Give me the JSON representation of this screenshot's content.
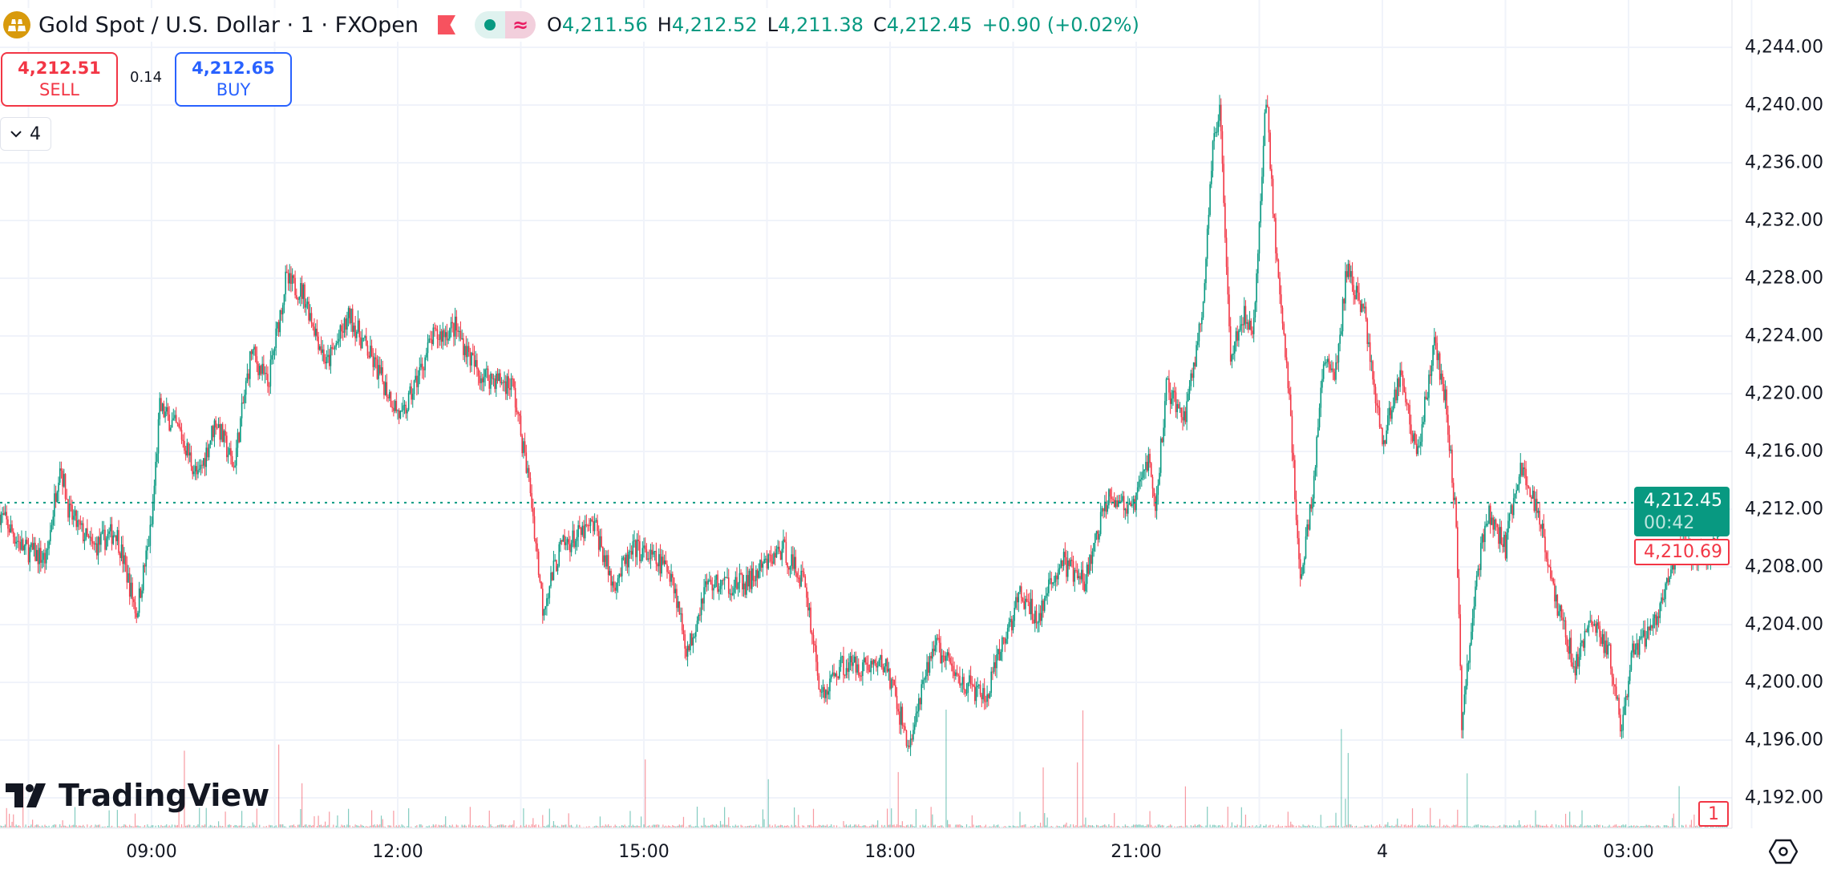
{
  "header": {
    "symbol_title": "Gold Spot / U.S. Dollar · 1 · FXOpen",
    "market_status_icon": "market-closed-flag-icon",
    "ohlc": {
      "open_label": "O",
      "open": "4,211.56",
      "high_label": "H",
      "high": "4,212.52",
      "low_label": "L",
      "low": "4,211.38",
      "close_label": "C",
      "close": "4,212.45",
      "change": "+0.90 (+0.02%)"
    }
  },
  "trade": {
    "sell_price": "4,212.51",
    "sell_label": "SELL",
    "spread": "0.14",
    "buy_price": "4,212.65",
    "buy_label": "BUY"
  },
  "legend_toggle": {
    "count": "4"
  },
  "price_axis": {
    "last_price": "4,212.45",
    "countdown": "00:42",
    "bid_price": "4,210.69",
    "pane_badge": "1"
  },
  "branding": {
    "logo_text": "TradingView"
  },
  "colors": {
    "up": "#089981",
    "down": "#f23645",
    "grid": "#f0f3fa",
    "accent": "#2962ff"
  },
  "chart_data": {
    "type": "candlestick",
    "interval": "1 minute",
    "y_ticks": [
      "4,192.00",
      "4,196.00",
      "4,200.00",
      "4,204.00",
      "4,208.00",
      "4,212.00",
      "4,216.00",
      "4,220.00",
      "4,224.00",
      "4,228.00",
      "4,232.00",
      "4,236.00",
      "4,240.00",
      "4,244.00"
    ],
    "y_tick_values": [
      4192,
      4196,
      4200,
      4204,
      4208,
      4212,
      4216,
      4220,
      4224,
      4228,
      4232,
      4236,
      4240,
      4244
    ],
    "x_ticks": [
      {
        "label": "09:00",
        "t": "09:00"
      },
      {
        "label": "12:00",
        "t": "12:00"
      },
      {
        "label": "15:00",
        "t": "15:00"
      },
      {
        "label": "18:00",
        "t": "18:00"
      },
      {
        "label": "21:00",
        "t": "21:00"
      },
      {
        "label": "4",
        "t": "00:00"
      },
      {
        "label": "03:00",
        "t": "03:00"
      }
    ],
    "ylim": [
      4190.5,
      4244.5
    ],
    "last_price_line": 4212.45,
    "approx_close_path": [
      [
        "07:09",
        4211.7
      ],
      [
        "07:26",
        4209.3
      ],
      [
        "07:43",
        4208.5
      ],
      [
        "07:53",
        4215.3
      ],
      [
        "08:00",
        4211.7
      ],
      [
        "08:17",
        4209.3
      ],
      [
        "08:34",
        4210.5
      ],
      [
        "08:49",
        4204.8
      ],
      [
        "09:00",
        4210.9
      ],
      [
        "09:06",
        4219.0
      ],
      [
        "09:21",
        4217.3
      ],
      [
        "09:34",
        4214.1
      ],
      [
        "09:47",
        4218.2
      ],
      [
        "10:00",
        4214.9
      ],
      [
        "10:13",
        4223.0
      ],
      [
        "10:25",
        4220.6
      ],
      [
        "10:38",
        4227.8
      ],
      [
        "10:51",
        4227.0
      ],
      [
        "11:08",
        4222.0
      ],
      [
        "11:25",
        4225.4
      ],
      [
        "11:42",
        4222.2
      ],
      [
        "12:03",
        4218.2
      ],
      [
        "12:25",
        4223.8
      ],
      [
        "12:42",
        4224.6
      ],
      [
        "12:59",
        4221.4
      ],
      [
        "13:24",
        4220.6
      ],
      [
        "13:37",
        4213.3
      ],
      [
        "13:46",
        4205.2
      ],
      [
        "13:59",
        4209.3
      ],
      [
        "14:24",
        4210.9
      ],
      [
        "14:37",
        4206.8
      ],
      [
        "14:54",
        4209.3
      ],
      [
        "15:20",
        4207.7
      ],
      [
        "15:32",
        4202.0
      ],
      [
        "15:45",
        4206.8
      ],
      [
        "16:15",
        4206.8
      ],
      [
        "16:41",
        4209.3
      ],
      [
        "16:58",
        4206.8
      ],
      [
        "17:10",
        4198.8
      ],
      [
        "17:23",
        4201.2
      ],
      [
        "17:57",
        4201.2
      ],
      [
        "18:14",
        4195.5
      ],
      [
        "18:32",
        4202.8
      ],
      [
        "18:49",
        4200.4
      ],
      [
        "19:10",
        4198.8
      ],
      [
        "19:23",
        4202.8
      ],
      [
        "19:35",
        4206.0
      ],
      [
        "19:48",
        4204.4
      ],
      [
        "20:05",
        4208.5
      ],
      [
        "20:22",
        4206.8
      ],
      [
        "20:40",
        4213.3
      ],
      [
        "20:57",
        4211.7
      ],
      [
        "21:09",
        4215.7
      ],
      [
        "21:14",
        4211.7
      ],
      [
        "21:22",
        4220.6
      ],
      [
        "21:35",
        4218.2
      ],
      [
        "21:48",
        4225.4
      ],
      [
        "21:56",
        4236.7
      ],
      [
        "22:01",
        4240.0
      ],
      [
        "22:09",
        4223.0
      ],
      [
        "22:18",
        4225.4
      ],
      [
        "22:26",
        4224.6
      ],
      [
        "22:35",
        4240.8
      ],
      [
        "22:43",
        4228.7
      ],
      [
        "22:52",
        4219.8
      ],
      [
        "23:00",
        4206.8
      ],
      [
        "23:09",
        4213.3
      ],
      [
        "23:17",
        4222.2
      ],
      [
        "23:26",
        4221.4
      ],
      [
        "23:34",
        4228.7
      ],
      [
        "23:47",
        4225.4
      ],
      [
        "00:00",
        4216.5
      ],
      [
        "00:13",
        4221.4
      ],
      [
        "00:26",
        4215.7
      ],
      [
        "00:38",
        4223.8
      ],
      [
        "00:47",
        4219.0
      ],
      [
        "00:54",
        4210.9
      ],
      [
        "00:58",
        4197.1
      ],
      [
        "01:08",
        4206.8
      ],
      [
        "01:17",
        4211.7
      ],
      [
        "01:30",
        4209.3
      ],
      [
        "01:40",
        4214.9
      ],
      [
        "01:55",
        4211.7
      ],
      [
        "02:08",
        4205.2
      ],
      [
        "02:21",
        4201.2
      ],
      [
        "02:33",
        4204.4
      ],
      [
        "02:46",
        4202.0
      ],
      [
        "02:55",
        4196.3
      ],
      [
        "03:03",
        4202.0
      ],
      [
        "03:20",
        4204.4
      ],
      [
        "03:37",
        4209.3
      ],
      [
        "03:59",
        4208.5
      ],
      [
        "04:12",
        4212.45
      ]
    ]
  }
}
